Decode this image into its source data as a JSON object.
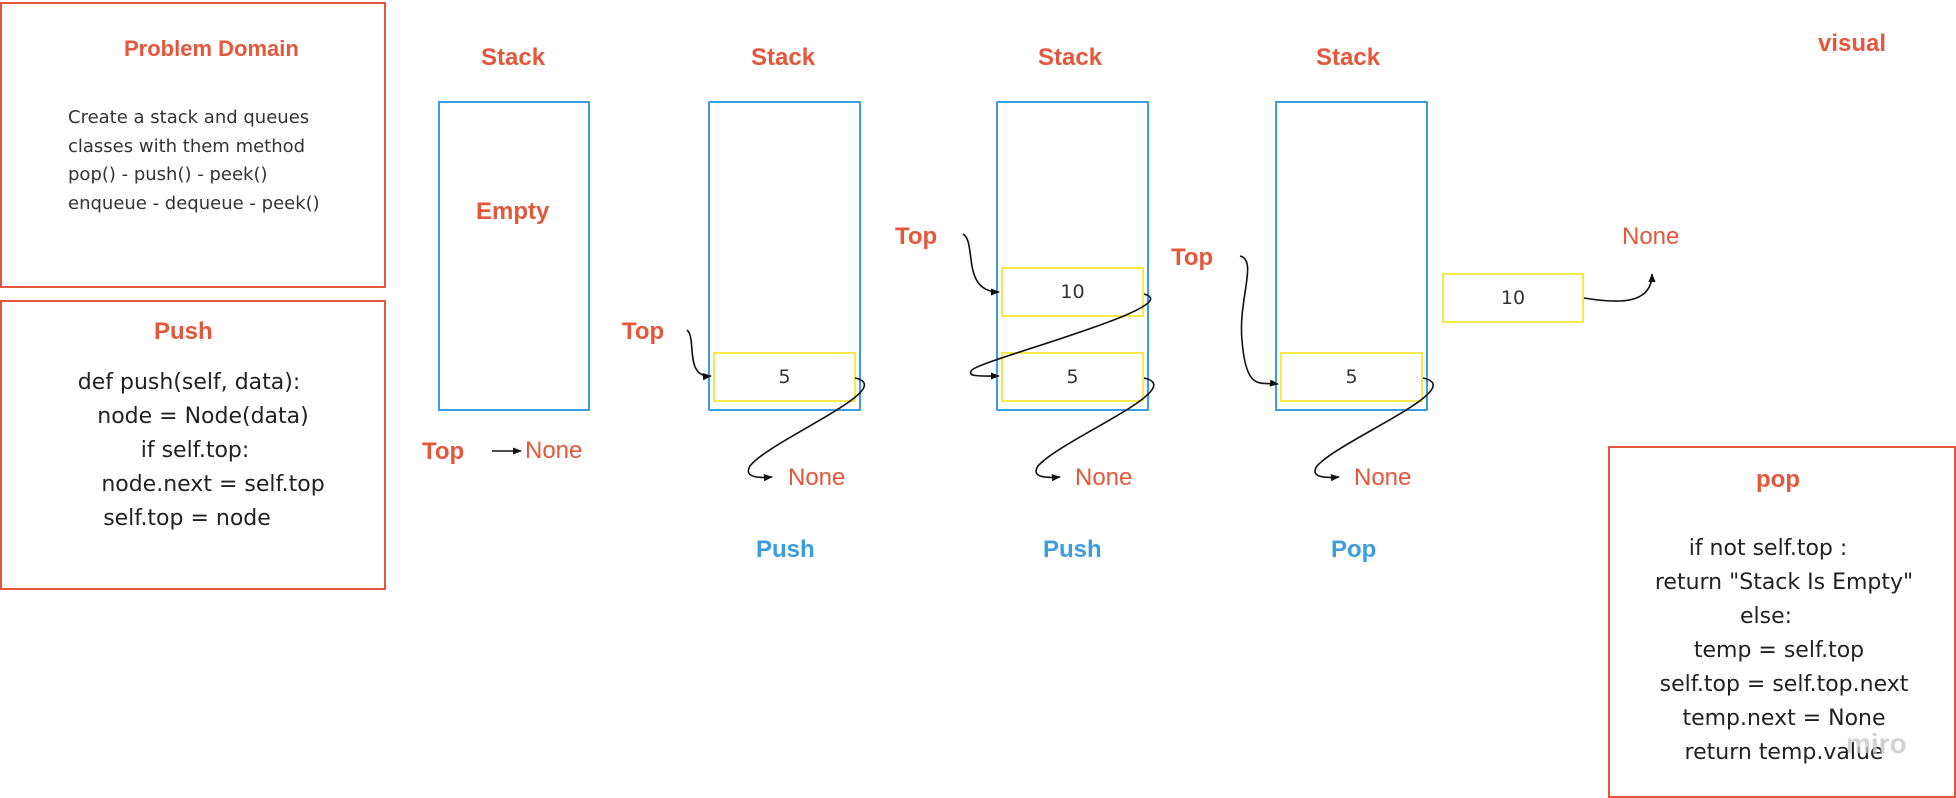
{
  "problem_domain": {
    "title": "Problem Domain",
    "lines": [
      "Create a stack and queues",
      "classes with them method",
      "pop() - push() - peek()",
      "enqueue - dequeue - peek()"
    ]
  },
  "push_panel": {
    "title": "Push",
    "lines": [
      "def push(self, data):",
      "node = Node(data)",
      "if self.top:",
      "node.next = self.top",
      "self.top = node"
    ]
  },
  "pop_panel": {
    "title": "pop",
    "lines": [
      "if not self.top :",
      "return \"Stack Is Empty\"",
      "else:",
      "temp = self.top",
      "self.top = self.top.next",
      "temp.next = None",
      "return temp.value"
    ]
  },
  "visual_label": "visual",
  "stacks": [
    {
      "title": "Stack",
      "empty_label": "Empty",
      "top_label": "Top",
      "none_label": "None",
      "nodes": []
    },
    {
      "title": "Stack",
      "top_label": "Top",
      "none_label": "None",
      "operation": "Push",
      "nodes": [
        "5"
      ]
    },
    {
      "title": "Stack",
      "top_label": "Top",
      "none_label": "None",
      "operation": "Push",
      "nodes": [
        "10",
        "5"
      ]
    },
    {
      "title": "Stack",
      "top_label": "Top",
      "none_label": "None",
      "operation": "Pop",
      "nodes": [
        "5"
      ]
    }
  ],
  "popped": {
    "value": "10",
    "none_label": "None"
  },
  "watermark": "miro",
  "colors": {
    "accent": "#e4573b",
    "stack_border": "#3a9de0",
    "node_border": "#f5ea4a"
  }
}
